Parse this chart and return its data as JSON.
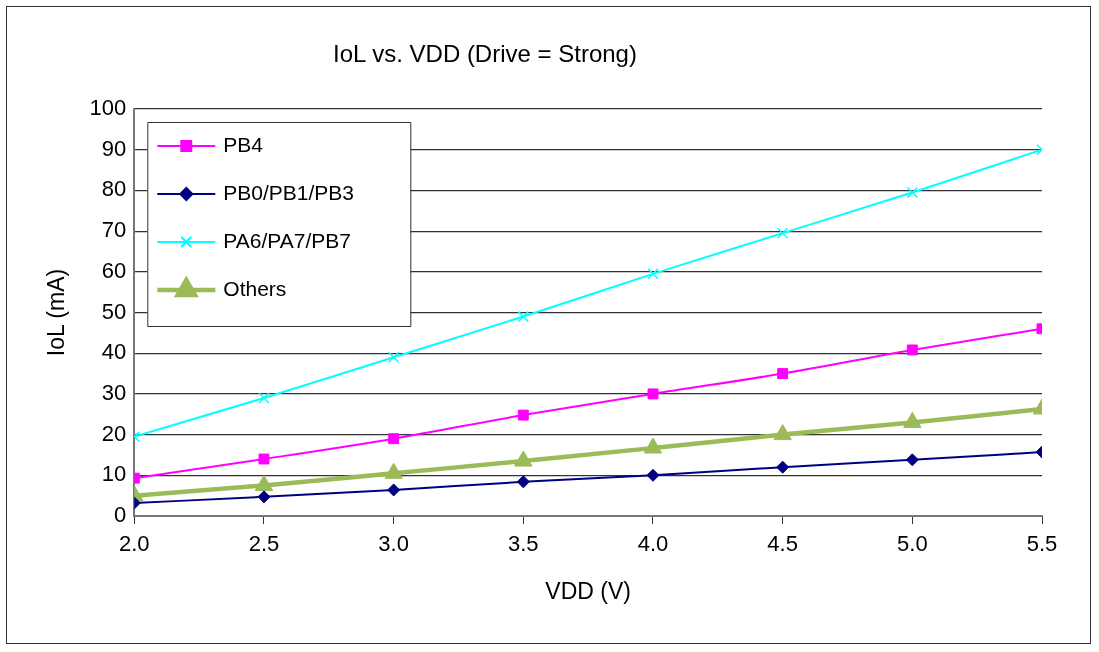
{
  "chart_data": {
    "type": "line",
    "title": "IoL vs. VDD (Drive = Strong)",
    "xlabel": "VDD (V)",
    "ylabel": "IoL (mA)",
    "x": [
      2.0,
      2.5,
      3.0,
      3.5,
      4.0,
      4.5,
      5.0,
      5.5
    ],
    "series": [
      {
        "name": "PB4",
        "color": "#ff00ff",
        "marker": "square",
        "values": [
          9.3,
          14,
          19,
          24.8,
          30,
          35,
          40.8,
          46
        ]
      },
      {
        "name": "PB0/PB1/PB3",
        "color": "#000080",
        "marker": "diamond",
        "values": [
          3.2,
          4.7,
          6.4,
          8.4,
          10,
          12,
          13.8,
          15.7
        ]
      },
      {
        "name": "PA6/PA7/PB7",
        "color": "#00ffff",
        "marker": "cross",
        "values": [
          19.5,
          29,
          39,
          49,
          59.5,
          69.5,
          79.5,
          90
        ]
      },
      {
        "name": "Others",
        "color": "#9bbb59",
        "marker": "triangle",
        "values": [
          5,
          7.5,
          10.5,
          13.5,
          16.7,
          20,
          23,
          26.3
        ]
      }
    ],
    "xlim": [
      2,
      5.5
    ],
    "xticks": [
      {
        "value": 2,
        "label": "2.0"
      },
      {
        "value": 2.5,
        "label": "2.5"
      },
      {
        "value": 3,
        "label": "3.0"
      },
      {
        "value": 3.5,
        "label": "3.5"
      },
      {
        "value": 4,
        "label": "4.0"
      },
      {
        "value": 4.5,
        "label": "4.5"
      },
      {
        "value": 5,
        "label": "5.0"
      },
      {
        "value": 5.5,
        "label": "5.5"
      }
    ],
    "ylim": [
      0,
      100
    ],
    "yticks": [
      0,
      10,
      20,
      30,
      40,
      50,
      60,
      70,
      80,
      90,
      100
    ],
    "grid": "y",
    "legend": "top left",
    "line_style": "solid"
  }
}
